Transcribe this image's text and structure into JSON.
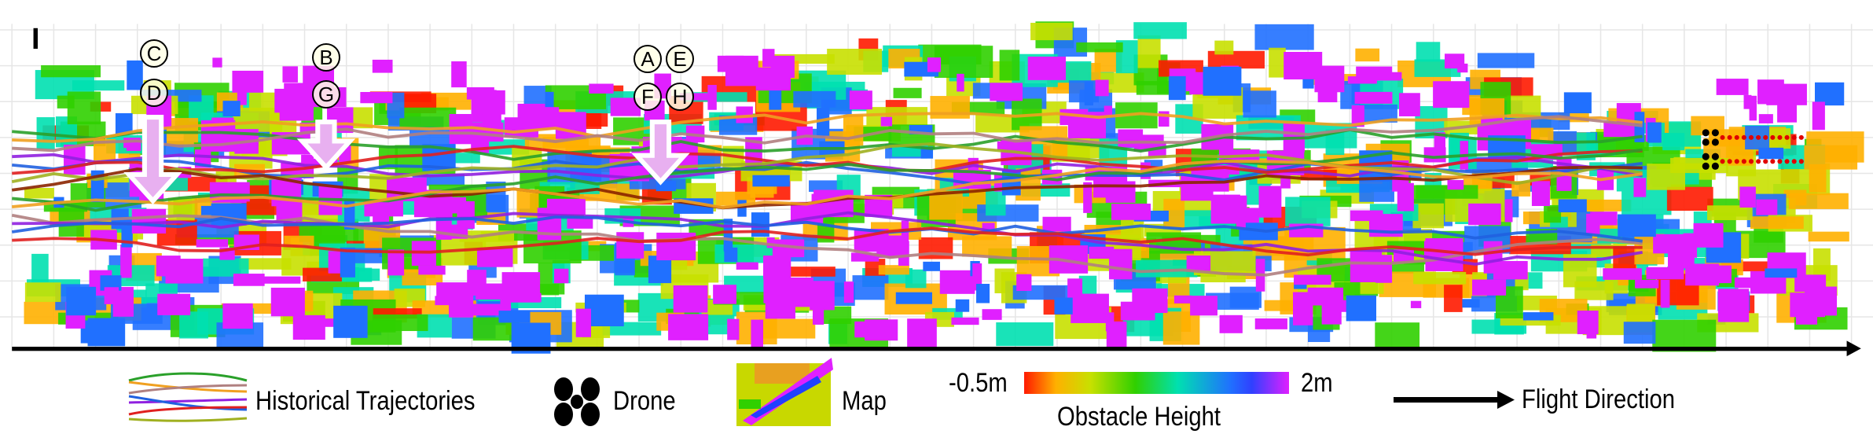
{
  "panel_label": "I",
  "markers": [
    {
      "id": "C",
      "group": "left"
    },
    {
      "id": "D",
      "group": "left"
    },
    {
      "id": "B",
      "group": "middle"
    },
    {
      "id": "G",
      "group": "middle"
    },
    {
      "id": "A",
      "group": "right"
    },
    {
      "id": "E",
      "group": "right"
    },
    {
      "id": "F",
      "group": "right"
    },
    {
      "id": "H",
      "group": "right"
    }
  ],
  "legend": {
    "trajectories": "Historical Trajectories",
    "drone": "Drone",
    "map": "Map",
    "colorbar_min": "-0.5m",
    "colorbar_max": "2m",
    "colorbar_title": "Obstacle Height",
    "direction": "Flight Direction"
  },
  "colors": {
    "trajectory_colors": [
      "#2aa02a",
      "#f0a020",
      "#b08080",
      "#9020e0",
      "#2060e0",
      "#e02020",
      "#a0b020",
      "#8b2500"
    ],
    "height_scale": [
      "#ff1a00",
      "#ffb000",
      "#c8e000",
      "#30d000",
      "#00e0b0",
      "#2070ff",
      "#e020ff"
    ],
    "obstacle_high": "#e020ff"
  }
}
